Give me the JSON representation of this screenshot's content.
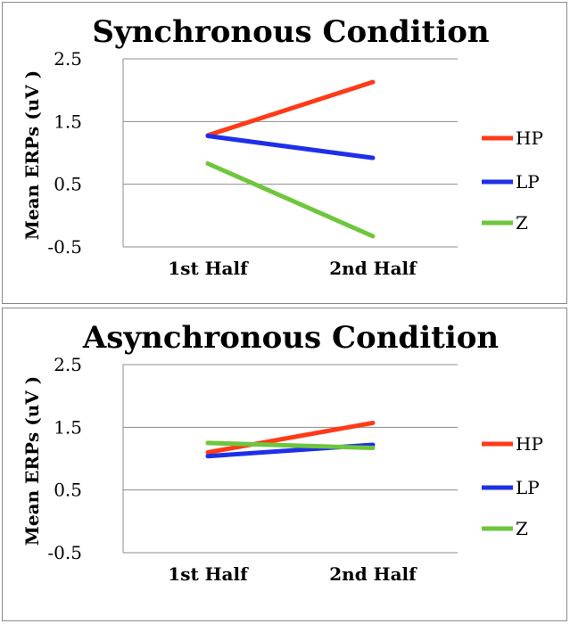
{
  "chart_data": [
    {
      "type": "line",
      "title": "Synchronous Condition",
      "xlabel": "",
      "ylabel": "Mean ERPs (uV )",
      "categories": [
        "1st Half",
        "2nd Half"
      ],
      "yticks": [
        "2.5",
        "1.5",
        "0.5",
        "-0.5"
      ],
      "ylim": [
        -0.5,
        2.5
      ],
      "grid": true,
      "legend_position": "right",
      "series": [
        {
          "name": "HP",
          "color": "#ff3a17",
          "values": [
            1.28,
            2.13
          ]
        },
        {
          "name": "LP",
          "color": "#1f2fe8",
          "values": [
            1.27,
            0.92
          ]
        },
        {
          "name": "Z",
          "color": "#6ec63c",
          "values": [
            0.83,
            -0.33
          ]
        }
      ]
    },
    {
      "type": "line",
      "title": "Asynchronous Condition",
      "xlabel": "",
      "ylabel": "Mean ERPs (uV )",
      "categories": [
        "1st Half",
        "2nd Half"
      ],
      "yticks": [
        "2.5",
        "1.5",
        "0.5",
        "-0.5"
      ],
      "ylim": [
        -0.5,
        2.5
      ],
      "grid": true,
      "legend_position": "right",
      "series": [
        {
          "name": "HP",
          "color": "#ff3a17",
          "values": [
            1.1,
            1.57
          ]
        },
        {
          "name": "LP",
          "color": "#1f2fe8",
          "values": [
            1.04,
            1.22
          ]
        },
        {
          "name": "Z",
          "color": "#6ec63c",
          "values": [
            1.25,
            1.17
          ]
        }
      ]
    }
  ]
}
